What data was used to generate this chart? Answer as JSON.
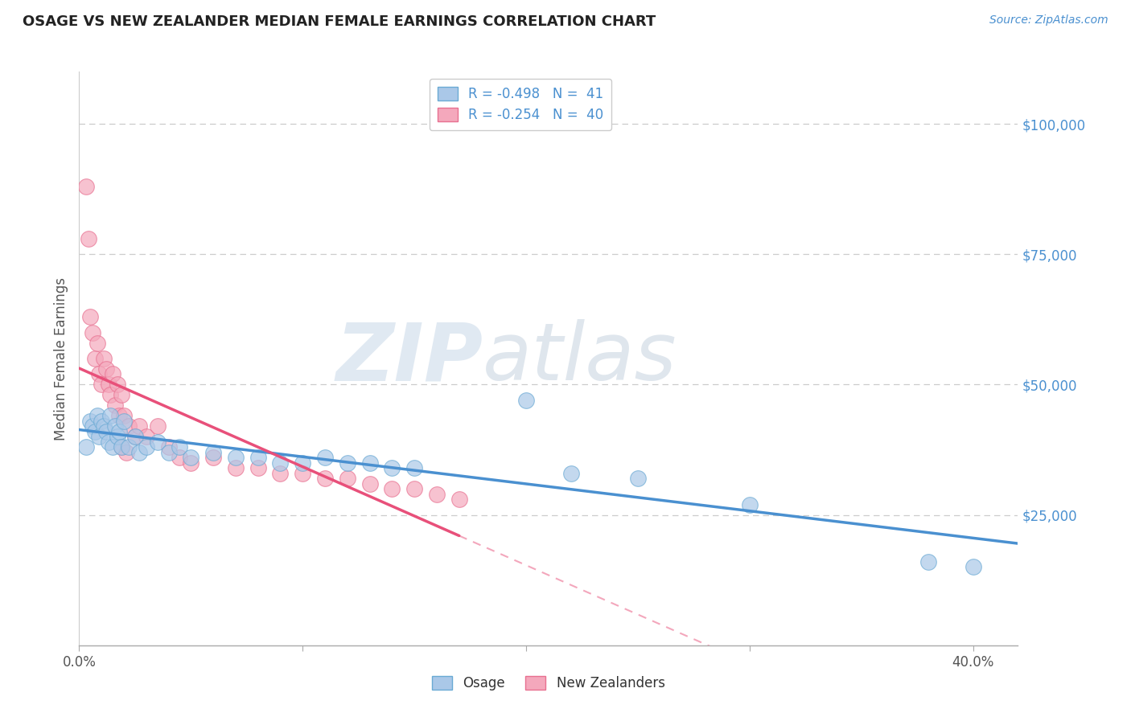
{
  "title": "OSAGE VS NEW ZEALANDER MEDIAN FEMALE EARNINGS CORRELATION CHART",
  "source": "Source: ZipAtlas.com",
  "ylabel": "Median Female Earnings",
  "y_ticks": [
    0,
    25000,
    50000,
    75000,
    100000
  ],
  "y_tick_labels": [
    "",
    "$25,000",
    "$50,000",
    "$75,000",
    "$100,000"
  ],
  "x_range": [
    0.0,
    0.42
  ],
  "y_range": [
    0,
    110000
  ],
  "legend_r_osage": "R = -0.498",
  "legend_n_osage": "N =  41",
  "legend_r_nz": "R = -0.254",
  "legend_n_nz": "N =  40",
  "osage_color": "#aac8e8",
  "nz_color": "#f4a8bc",
  "osage_edge_color": "#6aaad4",
  "nz_edge_color": "#e87090",
  "osage_line_color": "#4a90d0",
  "nz_line_color": "#e8507a",
  "watermark_zip": "ZIP",
  "watermark_atlas": "atlas",
  "background_color": "#ffffff",
  "grid_color": "#cccccc",
  "osage_scatter": [
    [
      0.003,
      38000
    ],
    [
      0.005,
      43000
    ],
    [
      0.006,
      42000
    ],
    [
      0.007,
      41000
    ],
    [
      0.008,
      44000
    ],
    [
      0.009,
      40000
    ],
    [
      0.01,
      43000
    ],
    [
      0.011,
      42000
    ],
    [
      0.012,
      41000
    ],
    [
      0.013,
      39000
    ],
    [
      0.014,
      44000
    ],
    [
      0.015,
      38000
    ],
    [
      0.016,
      42000
    ],
    [
      0.017,
      40000
    ],
    [
      0.018,
      41000
    ],
    [
      0.019,
      38000
    ],
    [
      0.02,
      43000
    ],
    [
      0.022,
      38000
    ],
    [
      0.025,
      40000
    ],
    [
      0.027,
      37000
    ],
    [
      0.03,
      38000
    ],
    [
      0.035,
      39000
    ],
    [
      0.04,
      37000
    ],
    [
      0.045,
      38000
    ],
    [
      0.05,
      36000
    ],
    [
      0.06,
      37000
    ],
    [
      0.07,
      36000
    ],
    [
      0.08,
      36000
    ],
    [
      0.09,
      35000
    ],
    [
      0.1,
      35000
    ],
    [
      0.11,
      36000
    ],
    [
      0.12,
      35000
    ],
    [
      0.13,
      35000
    ],
    [
      0.14,
      34000
    ],
    [
      0.15,
      34000
    ],
    [
      0.2,
      47000
    ],
    [
      0.22,
      33000
    ],
    [
      0.25,
      32000
    ],
    [
      0.3,
      27000
    ],
    [
      0.38,
      16000
    ],
    [
      0.4,
      15000
    ]
  ],
  "nz_scatter": [
    [
      0.003,
      88000
    ],
    [
      0.004,
      78000
    ],
    [
      0.005,
      63000
    ],
    [
      0.006,
      60000
    ],
    [
      0.007,
      55000
    ],
    [
      0.008,
      58000
    ],
    [
      0.009,
      52000
    ],
    [
      0.01,
      50000
    ],
    [
      0.011,
      55000
    ],
    [
      0.012,
      53000
    ],
    [
      0.013,
      50000
    ],
    [
      0.014,
      48000
    ],
    [
      0.015,
      52000
    ],
    [
      0.016,
      46000
    ],
    [
      0.017,
      50000
    ],
    [
      0.018,
      44000
    ],
    [
      0.019,
      48000
    ],
    [
      0.02,
      44000
    ],
    [
      0.022,
      42000
    ],
    [
      0.025,
      40000
    ],
    [
      0.027,
      42000
    ],
    [
      0.03,
      40000
    ],
    [
      0.035,
      42000
    ],
    [
      0.04,
      38000
    ],
    [
      0.045,
      36000
    ],
    [
      0.05,
      35000
    ],
    [
      0.06,
      36000
    ],
    [
      0.07,
      34000
    ],
    [
      0.08,
      34000
    ],
    [
      0.09,
      33000
    ],
    [
      0.1,
      33000
    ],
    [
      0.11,
      32000
    ],
    [
      0.12,
      32000
    ],
    [
      0.13,
      31000
    ],
    [
      0.14,
      30000
    ],
    [
      0.15,
      30000
    ],
    [
      0.16,
      29000
    ],
    [
      0.17,
      28000
    ],
    [
      0.019,
      38000
    ],
    [
      0.021,
      37000
    ]
  ]
}
